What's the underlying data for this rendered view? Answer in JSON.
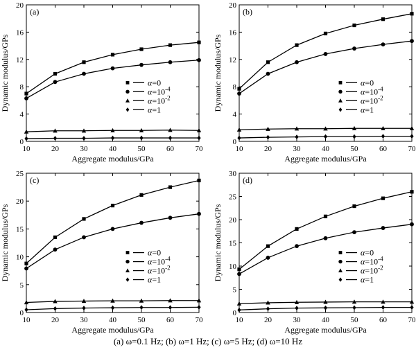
{
  "figure": {
    "caption": "(a) ω=0.1 Hz; (b) ω=1 Hz; (c) ω=5 Hz; (d) ω=10 Hz"
  },
  "chart_data": [
    {
      "type": "line",
      "panel_label": "(a)",
      "xlabel": "Aggregate modulus/GPa",
      "ylabel": "Dynamic modulus/GPs",
      "xlim": [
        10,
        70
      ],
      "ylim": [
        0,
        20
      ],
      "x_ticks": [
        10,
        20,
        30,
        40,
        50,
        60,
        70
      ],
      "y_ticks": [
        0,
        4,
        8,
        12,
        16,
        20
      ],
      "grid": false,
      "legend_position": "center-right",
      "x": [
        10,
        20,
        30,
        40,
        50,
        60,
        70
      ],
      "series": [
        {
          "name": "α=0",
          "marker": "square",
          "values": [
            7.0,
            9.9,
            11.6,
            12.7,
            13.5,
            14.1,
            14.5
          ]
        },
        {
          "name": "α=10⁻⁴",
          "marker": "circle",
          "values": [
            6.3,
            8.7,
            9.9,
            10.7,
            11.2,
            11.6,
            11.9
          ]
        },
        {
          "name": "α=10⁻²",
          "marker": "triangle",
          "values": [
            1.4,
            1.55,
            1.55,
            1.6,
            1.6,
            1.65,
            1.6
          ]
        },
        {
          "name": "α=1",
          "marker": "diamond",
          "values": [
            0.4,
            0.45,
            0.45,
            0.5,
            0.5,
            0.5,
            0.5
          ]
        }
      ]
    },
    {
      "type": "line",
      "panel_label": "(b)",
      "xlabel": "Aggregate modulus/GPa",
      "ylabel": "Dynamic modulus/GPs",
      "xlim": [
        10,
        70
      ],
      "ylim": [
        0,
        20
      ],
      "x_ticks": [
        10,
        20,
        30,
        40,
        50,
        60,
        70
      ],
      "y_ticks": [
        0,
        4,
        8,
        12,
        16,
        20
      ],
      "grid": false,
      "legend_position": "center-right",
      "x": [
        10,
        20,
        30,
        40,
        50,
        60,
        70
      ],
      "series": [
        {
          "name": "α=0",
          "marker": "square",
          "values": [
            7.7,
            11.6,
            14.1,
            15.8,
            17.0,
            17.9,
            18.7
          ]
        },
        {
          "name": "α=10⁻⁴",
          "marker": "circle",
          "values": [
            7.0,
            9.9,
            11.6,
            12.8,
            13.6,
            14.2,
            14.7
          ]
        },
        {
          "name": "α=10⁻²",
          "marker": "triangle",
          "values": [
            1.7,
            1.8,
            1.85,
            1.85,
            1.9,
            1.9,
            1.9
          ]
        },
        {
          "name": "α=1",
          "marker": "diamond",
          "values": [
            0.5,
            0.6,
            0.65,
            0.7,
            0.7,
            0.75,
            0.75
          ]
        }
      ]
    },
    {
      "type": "line",
      "panel_label": "(c)",
      "xlabel": "Aggregate modulus/GPa",
      "ylabel": "Dynamic modulus/GPs",
      "xlim": [
        10,
        70
      ],
      "ylim": [
        0,
        25
      ],
      "x_ticks": [
        10,
        20,
        30,
        40,
        50,
        60,
        70
      ],
      "y_ticks": [
        0,
        5,
        10,
        15,
        20,
        25
      ],
      "grid": false,
      "legend_position": "center-right",
      "x": [
        10,
        20,
        30,
        40,
        50,
        60,
        70
      ],
      "series": [
        {
          "name": "α=0",
          "marker": "square",
          "values": [
            8.8,
            13.5,
            16.8,
            19.2,
            21.1,
            22.5,
            23.7
          ]
        },
        {
          "name": "α=10⁻⁴",
          "marker": "circle",
          "values": [
            7.9,
            11.3,
            13.5,
            15.0,
            16.1,
            17.0,
            17.7
          ]
        },
        {
          "name": "α=10⁻²",
          "marker": "triangle",
          "values": [
            1.8,
            2.0,
            2.05,
            2.1,
            2.1,
            2.15,
            2.15
          ]
        },
        {
          "name": "α=1",
          "marker": "diamond",
          "values": [
            0.5,
            0.7,
            0.8,
            0.85,
            0.9,
            0.9,
            0.95
          ]
        }
      ]
    },
    {
      "type": "line",
      "panel_label": "(d)",
      "xlabel": "Aggregate modulus/GPa",
      "ylabel": "Dynamic modulus/GPs",
      "xlim": [
        10,
        70
      ],
      "ylim": [
        0,
        30
      ],
      "x_ticks": [
        10,
        20,
        30,
        40,
        50,
        60,
        70
      ],
      "y_ticks": [
        0,
        5,
        10,
        15,
        20,
        25,
        30
      ],
      "grid": false,
      "legend_position": "center-right",
      "x": [
        10,
        20,
        30,
        40,
        50,
        60,
        70
      ],
      "series": [
        {
          "name": "α=0",
          "marker": "square",
          "values": [
            9.3,
            14.3,
            18.0,
            20.7,
            22.9,
            24.6,
            26.0
          ]
        },
        {
          "name": "α=10⁻⁴",
          "marker": "circle",
          "values": [
            8.3,
            11.8,
            14.3,
            16.0,
            17.3,
            18.2,
            19.0
          ]
        },
        {
          "name": "α=10⁻²",
          "marker": "triangle",
          "values": [
            1.9,
            2.1,
            2.2,
            2.25,
            2.3,
            2.3,
            2.3
          ]
        },
        {
          "name": "α=1",
          "marker": "diamond",
          "values": [
            0.55,
            0.8,
            0.95,
            1.0,
            1.05,
            1.1,
            1.1
          ]
        }
      ]
    }
  ]
}
